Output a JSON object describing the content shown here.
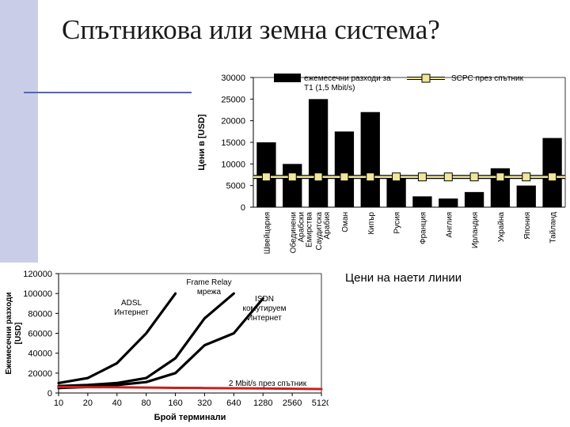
{
  "slide": {
    "title": "Спътникова или земна система?",
    "caption": "Цени на наети линии"
  },
  "chart_data": [
    {
      "type": "bar",
      "ylabel": "Цени в [USD]",
      "ylim": [
        0,
        30000
      ],
      "yticks": [
        0,
        5000,
        10000,
        15000,
        20000,
        25000,
        30000
      ],
      "categories": [
        "Швейцария",
        "Обединени Арабски Емирства",
        "Саудитска Арабия",
        "Оман",
        "Кипър",
        "Русия",
        "Франция",
        "Англия",
        "Ирландия",
        "Украйна",
        "Япония",
        "Тайланд"
      ],
      "series": [
        {
          "name": "ежемесечни разходи за T1 (1,5 Mbit/s)",
          "color": "#000000",
          "values": [
            15000,
            10000,
            25000,
            17500,
            22000,
            7000,
            2500,
            2000,
            3500,
            9000,
            5000,
            16000
          ]
        },
        {
          "name": "SCPC през спътник",
          "type": "line",
          "color": "#f0e79a",
          "values": [
            7000,
            7000,
            7000,
            7000,
            7000,
            7000,
            7000,
            7000,
            7000,
            7000,
            7000,
            7000
          ]
        }
      ],
      "grid": false,
      "legend": "top"
    },
    {
      "type": "line",
      "xlabel": "Брой терминали",
      "ylabel": "Ежемесечни разходи [USD]",
      "x": [
        10,
        20,
        40,
        80,
        160,
        320,
        640,
        1280,
        2560,
        5120
      ],
      "xscale": "log",
      "ylim": [
        0,
        120000
      ],
      "yticks": [
        0,
        20000,
        40000,
        60000,
        80000,
        100000,
        120000
      ],
      "series": [
        {
          "name": "ADSL Интернет",
          "color": "#000000",
          "x": [
            10,
            20,
            40,
            80,
            160
          ],
          "values": [
            10000,
            15000,
            30000,
            60000,
            100000
          ]
        },
        {
          "name": "Frame Relay мрежа",
          "color": "#000000",
          "x": [
            10,
            20,
            40,
            80,
            160,
            320,
            640
          ],
          "values": [
            7000,
            8000,
            10000,
            15000,
            35000,
            75000,
            100000
          ]
        },
        {
          "name": "ISDN комутируем Интернет",
          "color": "#000000",
          "x": [
            10,
            20,
            40,
            80,
            160,
            320,
            640,
            1280
          ],
          "values": [
            5000,
            6000,
            8000,
            11000,
            20000,
            48000,
            60000,
            95000
          ]
        },
        {
          "name": "2 Mbit/s през спътник",
          "color": "#cc1f1f",
          "x": [
            10,
            20,
            40,
            80,
            160,
            320,
            640,
            1280,
            2560,
            5120
          ],
          "values": [
            6000,
            5900,
            5700,
            5500,
            5200,
            5000,
            4800,
            4600,
            4300,
            4000
          ]
        }
      ],
      "grid": false
    }
  ]
}
